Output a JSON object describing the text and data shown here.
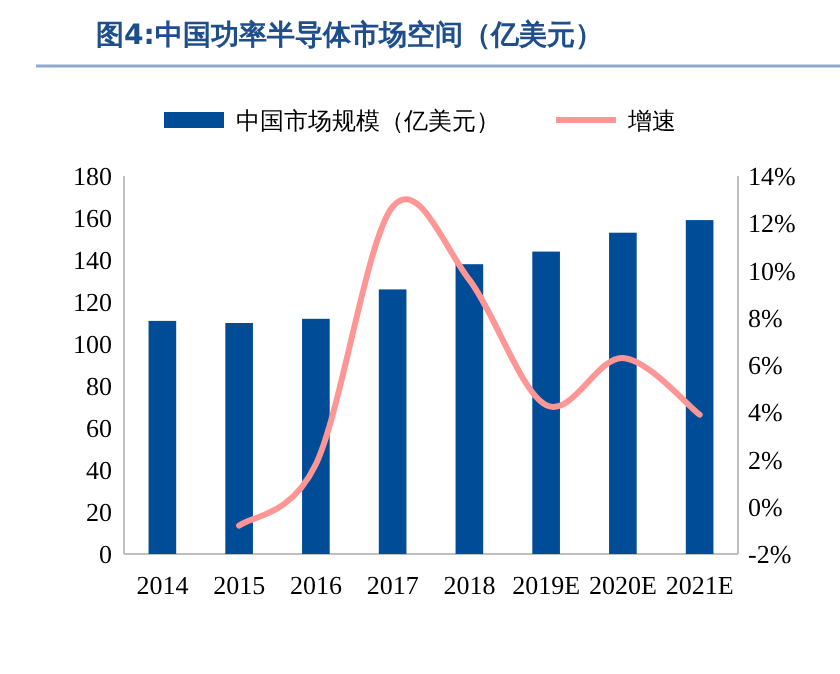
{
  "chart_data": {
    "type": "bar",
    "title": "图4:中国功率半导体市场空间（亿美元）",
    "categories": [
      "2014",
      "2015",
      "2016",
      "2017",
      "2018",
      "2019E",
      "2020E",
      "2021E"
    ],
    "series": [
      {
        "name": "中国市场规模（亿美元）",
        "color": "#004c97",
        "values": [
          111,
          110,
          112,
          126,
          138,
          144,
          153,
          159
        ]
      },
      {
        "name": "增速",
        "type": "line",
        "axis": "y2",
        "color": "#ff9696",
        "values": [
          null,
          -0.8,
          1.8,
          12.7,
          9.6,
          4.3,
          6.3,
          3.9
        ]
      }
    ],
    "ylim": [
      0,
      180
    ],
    "yticks": [
      0,
      20,
      40,
      60,
      80,
      100,
      120,
      140,
      160,
      180
    ],
    "y2lim": [
      -2,
      14
    ],
    "y2ticks": [
      {
        "value": -2,
        "label": "-2%"
      },
      {
        "value": 0,
        "label": "0%"
      },
      {
        "value": 2,
        "label": "2%"
      },
      {
        "value": 4,
        "label": "4%"
      },
      {
        "value": 6,
        "label": "6%"
      },
      {
        "value": 8,
        "label": "8%"
      },
      {
        "value": 10,
        "label": "10%"
      },
      {
        "value": 12,
        "label": "12%"
      },
      {
        "value": 14,
        "label": "14%"
      }
    ],
    "legend": "top",
    "grid": false
  }
}
